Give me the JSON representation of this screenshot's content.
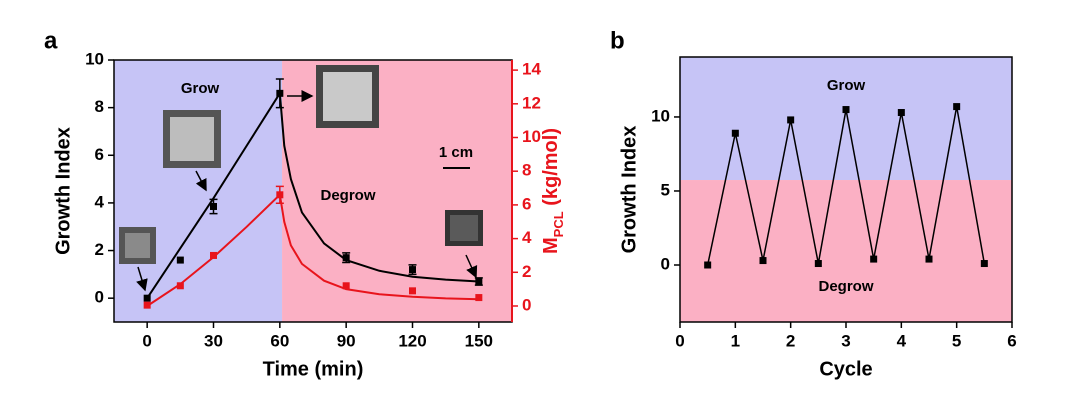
{
  "chart_data": [
    {
      "type": "scatter",
      "panel_label": "a",
      "x_label": "Time (min)",
      "y_label": "Growth Index",
      "y2_label_parts": [
        "M",
        "PCL",
        " (kg/mol)"
      ],
      "xlim": [
        -15,
        165
      ],
      "xticks": [
        0,
        30,
        60,
        90,
        120,
        150
      ],
      "ylim": [
        -1,
        10
      ],
      "yticks": [
        0,
        2,
        4,
        6,
        8,
        10
      ],
      "y2lim": [
        -0.95,
        14.6
      ],
      "y2ticks": [
        0,
        2,
        4,
        6,
        8,
        10,
        12,
        14
      ],
      "regions": [
        {
          "label": "Grow",
          "start": -15,
          "end": 61,
          "color": "#c6c4f6"
        },
        {
          "label": "Degrow",
          "start": 61,
          "end": 165,
          "color": "#fbb0c4"
        }
      ],
      "scale_bar": "1 cm",
      "x": [
        0,
        15,
        30,
        60,
        90,
        120,
        150
      ],
      "series": [
        {
          "color": "#000000",
          "values": [
            0,
            1.6,
            3.85,
            8.6,
            1.7,
            1.2,
            0.7
          ],
          "errors": [
            null,
            null,
            0.3,
            0.6,
            0.2,
            0.2,
            0.15
          ],
          "fit_x": [
            0,
            15,
            30,
            45,
            60,
            62,
            65,
            70,
            80,
            90,
            105,
            120,
            135,
            150
          ],
          "fit_values": [
            0,
            2.1,
            4.2,
            6.4,
            8.6,
            6.4,
            5.0,
            3.6,
            2.3,
            1.6,
            1.15,
            0.9,
            0.78,
            0.7
          ]
        },
        {
          "color": "#e8141c",
          "axis": "y2",
          "values": [
            0.05,
            1.2,
            3.0,
            6.6,
            1.2,
            0.9,
            0.5
          ],
          "errors": [
            null,
            null,
            null,
            0.5,
            null,
            null,
            null
          ],
          "fit_x": [
            0,
            15,
            30,
            45,
            60,
            62,
            65,
            70,
            80,
            90,
            105,
            120,
            135,
            150
          ],
          "fit_values": [
            0,
            1.3,
            2.9,
            4.7,
            6.6,
            5.0,
            3.6,
            2.5,
            1.5,
            1.0,
            0.7,
            0.55,
            0.45,
            0.4
          ]
        }
      ]
    },
    {
      "type": "line",
      "panel_label": "b",
      "x_label": "Cycle",
      "y_label": "Growth Index",
      "xlim": [
        0,
        6
      ],
      "xticks": [
        0,
        1,
        2,
        3,
        4,
        5,
        6
      ],
      "ylim": [
        -3.85,
        14.05
      ],
      "yticks": [
        0,
        5,
        10
      ],
      "regions": [
        {
          "label": "Grow",
          "start": 5.74,
          "end": 14.05,
          "color": "#c6c4f6"
        },
        {
          "label": "Degrow",
          "start": -3.85,
          "end": 5.74,
          "color": "#fbb0c4"
        }
      ],
      "x": [
        0.5,
        1,
        1.5,
        2,
        2.5,
        3,
        3.5,
        4,
        4.5,
        5,
        5.5
      ],
      "series": [
        {
          "color": "#000000",
          "values": [
            0,
            8.9,
            0.3,
            9.8,
            0.1,
            10.5,
            0.4,
            10.3,
            0.4,
            10.7,
            0.1
          ]
        }
      ]
    }
  ]
}
